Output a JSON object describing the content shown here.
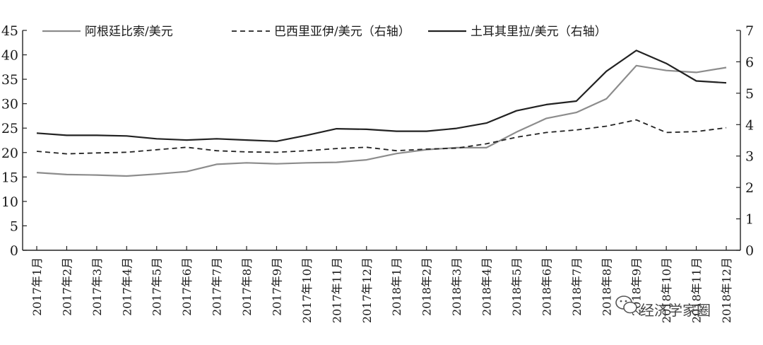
{
  "chart_data": {
    "type": "line",
    "categories": [
      "2017年1月",
      "2017年2月",
      "2017年3月",
      "2017年4月",
      "2017年5月",
      "2017年6月",
      "2017年7月",
      "2017年8月",
      "2017年9月",
      "2017年10月",
      "2017年11月",
      "2017年12月",
      "2018年1月",
      "2018年2月",
      "2018年3月",
      "2018年4月",
      "2018年5月",
      "2018年6月",
      "2018年7月",
      "2018年8月",
      "2018年9月",
      "2018年10月",
      "2018年11月",
      "2018年12月"
    ],
    "y_left": {
      "ylim": [
        0,
        45
      ],
      "ticks": [
        0,
        5,
        10,
        15,
        20,
        25,
        30,
        35,
        40,
        45
      ]
    },
    "y_right": {
      "ylim": [
        0,
        7
      ],
      "ticks": [
        0,
        1,
        2,
        3,
        4,
        5,
        6,
        7
      ]
    },
    "grid": false,
    "legend_position": "top",
    "series": [
      {
        "name": "阿根廷比索/美元",
        "axis": "left",
        "style": "solid",
        "color": "#8c8c8c",
        "values": [
          15.9,
          15.5,
          15.4,
          15.2,
          15.6,
          16.1,
          17.6,
          17.9,
          17.7,
          17.9,
          18.0,
          18.5,
          19.8,
          20.6,
          21.0,
          21.0,
          24.2,
          27.0,
          28.2,
          31.0,
          37.8,
          36.8,
          36.4,
          37.4
        ]
      },
      {
        "name": "巴西里亚伊/美元（右轴）",
        "axis": "right",
        "style": "dashed",
        "color": "#222222",
        "values": [
          3.15,
          3.07,
          3.1,
          3.12,
          3.2,
          3.28,
          3.17,
          3.13,
          3.12,
          3.17,
          3.24,
          3.28,
          3.17,
          3.22,
          3.25,
          3.39,
          3.6,
          3.75,
          3.83,
          3.95,
          4.15,
          3.75,
          3.78,
          3.9
        ]
      },
      {
        "name": "土耳其里拉/美元（右轴）",
        "axis": "right",
        "style": "solid",
        "color": "#222222",
        "values": [
          3.73,
          3.66,
          3.66,
          3.64,
          3.55,
          3.51,
          3.55,
          3.51,
          3.47,
          3.66,
          3.87,
          3.85,
          3.79,
          3.79,
          3.88,
          4.05,
          4.44,
          4.64,
          4.75,
          5.7,
          6.36,
          5.95,
          5.39,
          5.33
        ]
      }
    ]
  },
  "watermark": {
    "text": "经济学家圈"
  }
}
